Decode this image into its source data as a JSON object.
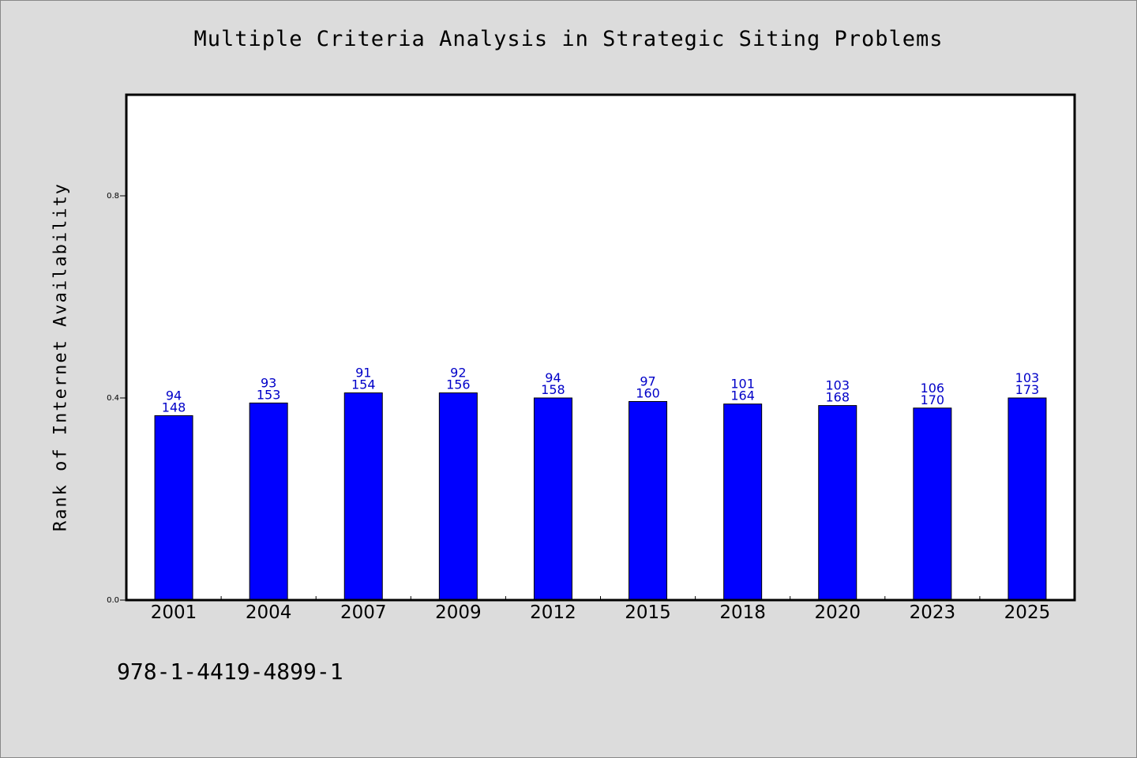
{
  "isbn": "978-1-4419-4899-1",
  "colors": {
    "bar": "#0000ff",
    "bar_stroke": "#000000",
    "data_label": "#0000c8",
    "background": "#dcdcdc",
    "plot_bg": "#ffffff"
  },
  "chart_data": {
    "type": "bar",
    "title": "Multiple Criteria Analysis in Strategic Siting Problems",
    "xlabel": "",
    "ylabel": "Rank of Internet Availability",
    "ylim": [
      0,
      1.0
    ],
    "yticks": [
      0.0,
      0.4,
      0.8
    ],
    "ytick_labels": [
      "0.0",
      "0.4",
      "0.8"
    ],
    "grid": false,
    "categories": [
      "2001",
      "2004",
      "2007",
      "2009",
      "2012",
      "2015",
      "2018",
      "2020",
      "2023",
      "2025"
    ],
    "values": [
      0.365,
      0.39,
      0.41,
      0.41,
      0.4,
      0.393,
      0.388,
      0.385,
      0.38,
      0.4
    ],
    "annotations_top": [
      "94",
      "93",
      "91",
      "92",
      "94",
      "97",
      "101",
      "103",
      "106",
      "103"
    ],
    "annotations_bottom": [
      "148",
      "153",
      "154",
      "156",
      "158",
      "160",
      "164",
      "168",
      "170",
      "173"
    ]
  }
}
